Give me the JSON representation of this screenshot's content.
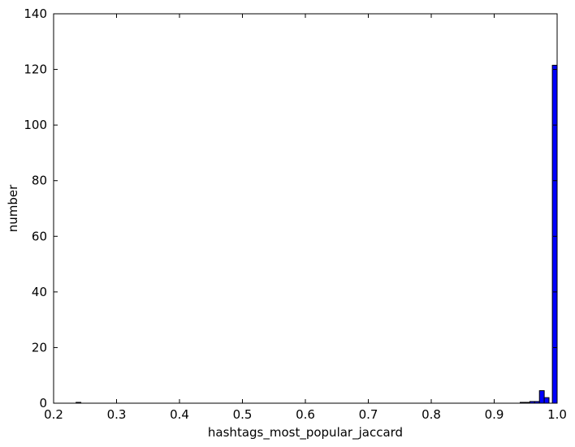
{
  "chart_data": {
    "type": "bar",
    "xlabel": "hashtags_most_popular_jaccard",
    "ylabel": "number",
    "xlim": [
      0.2,
      1.0
    ],
    "ylim": [
      0,
      140
    ],
    "x_ticks": [
      0.2,
      0.3,
      0.4,
      0.5,
      0.6,
      0.7,
      0.8,
      0.9,
      1.0
    ],
    "x_tick_labels": [
      "0.2",
      "0.3",
      "0.4",
      "0.5",
      "0.6",
      "0.7",
      "0.8",
      "0.9",
      "1.0"
    ],
    "y_ticks": [
      0,
      20,
      40,
      60,
      80,
      100,
      120,
      140
    ],
    "y_tick_labels": [
      "0",
      "20",
      "40",
      "60",
      "80",
      "100",
      "120",
      "140"
    ],
    "bar_color": "#0000ff",
    "bins": [
      {
        "x0": 0.2357,
        "x1": 0.2433,
        "value": 0.3
      },
      {
        "x0": 0.9413,
        "x1": 0.949,
        "value": 0.3
      },
      {
        "x0": 0.949,
        "x1": 0.9566,
        "value": 0.3
      },
      {
        "x0": 0.9566,
        "x1": 0.9642,
        "value": 0.6
      },
      {
        "x0": 0.9642,
        "x1": 0.9719,
        "value": 0.6
      },
      {
        "x0": 0.9719,
        "x1": 0.9795,
        "value": 4.5
      },
      {
        "x0": 0.9795,
        "x1": 0.9871,
        "value": 2
      },
      {
        "x0": 0.9924,
        "x1": 1.0,
        "value": 121.5
      }
    ]
  }
}
